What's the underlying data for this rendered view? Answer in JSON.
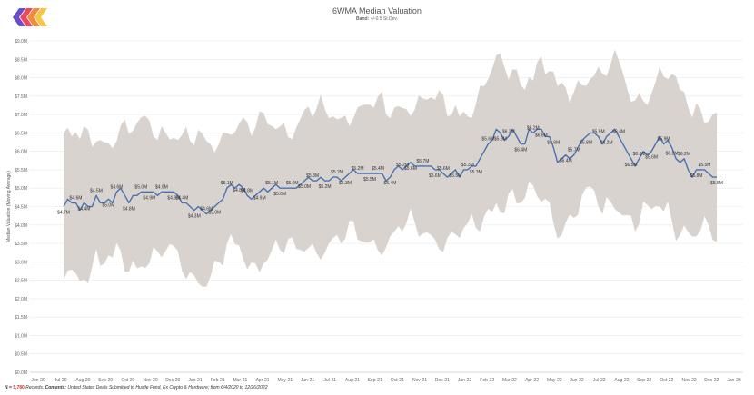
{
  "title": "6WMA Median Valuation",
  "subtitle": {
    "label": "Band:",
    "value": "+/-0.5 St.Dev."
  },
  "logo": {
    "name": "hustle-fund-logo",
    "colors": [
      "#6a4ec9",
      "#e94a5f",
      "#f08a3c",
      "#f7c548"
    ]
  },
  "footer": {
    "n_prefix": "N =",
    "n_value": "5,780",
    "records": "Records.",
    "contents_label": "Contents:",
    "contents_text": "United States Deals Submitted to Hustle Fund, Ex Crypto & Hardware; from 6/4/2020 to 12/26/2022"
  },
  "chart_data": {
    "type": "line",
    "title": "6WMA Median Valuation",
    "ylabel": "Median Valuation (Moving Average)",
    "ylim": [
      0,
      9
    ],
    "y_ticks": [
      "$0.0M",
      "$0.5M",
      "$1.0M",
      "$1.5M",
      "$2.0M",
      "$2.5M",
      "$3.0M",
      "$3.5M",
      "$4.0M",
      "$4.5M",
      "$5.0M",
      "$5.5M",
      "$6.0M",
      "$6.5M",
      "$7.0M",
      "$7.5M",
      "$8.0M",
      "$8.5M",
      "$9.0M"
    ],
    "x_ticks": [
      "Jun-20",
      "Jul-20",
      "Aug-20",
      "Sep-20",
      "Oct-20",
      "Nov-20",
      "Dec-20",
      "Jan-21",
      "Feb-21",
      "Mar-21",
      "Apr-21",
      "May-21",
      "Jun-21",
      "Jul-21",
      "Aug-21",
      "Sep-21",
      "Oct-21",
      "Nov-21",
      "Dec-21",
      "Jan-22",
      "Feb-22",
      "Mar-22",
      "Apr-22",
      "May-22",
      "Jun-22",
      "Jul-22",
      "Aug-22",
      "Sep-22",
      "Oct-22",
      "Nov-22",
      "Dec-22",
      "Jan-23"
    ],
    "line_color": "#4a72b0",
    "band_color": "#d9d3d0",
    "series": [
      {
        "values": [
          4.5,
          4.7,
          4.6,
          4.6,
          4.4,
          4.6,
          4.5,
          4.5,
          4.8,
          4.6,
          4.6,
          4.7,
          4.6,
          4.9,
          5.0,
          4.8,
          4.6,
          4.8,
          4.8,
          4.9,
          4.9,
          4.9,
          4.9,
          4.8,
          4.9,
          4.9,
          4.9,
          4.9,
          4.8,
          4.6,
          4.6,
          4.5,
          4.4,
          4.5,
          4.4,
          4.3,
          4.4,
          4.5,
          4.6,
          4.7,
          5.0,
          5.1,
          5.0,
          5.1,
          5.0,
          4.8,
          4.7,
          4.8,
          4.9,
          5.0,
          4.9,
          5.0,
          5.1,
          5.0,
          5.0,
          5.0,
          5.0,
          5.0,
          5.1,
          5.2,
          5.3,
          5.2,
          5.2,
          5.3,
          5.2,
          5.2,
          5.3,
          5.3,
          5.2,
          5.3,
          5.4,
          5.5,
          5.4,
          5.4,
          5.4,
          5.4,
          5.4,
          5.4,
          5.4,
          5.2,
          5.3,
          5.5,
          5.6,
          5.5,
          5.6,
          5.7,
          5.6,
          5.6,
          5.6,
          5.6,
          5.6,
          5.5,
          5.5,
          5.4,
          5.3,
          5.4,
          5.5,
          5.3,
          5.5,
          5.5,
          5.6,
          5.6,
          5.8,
          6.0,
          6.2,
          6.3,
          6.6,
          6.5,
          6.3,
          6.4,
          6.6,
          6.4,
          6.2,
          6.2,
          6.6,
          6.5,
          6.6,
          6.6,
          6.4,
          6.4,
          6.1,
          5.7,
          5.8,
          5.9,
          5.8,
          5.9,
          6.1,
          6.3,
          6.4,
          6.5,
          6.5,
          6.4,
          6.2,
          6.4,
          6.5,
          6.6,
          6.4,
          6.2,
          6.0,
          5.8,
          5.6,
          5.8,
          6.0,
          5.9,
          6.0,
          6.2,
          6.4,
          6.2,
          6.3,
          6.1,
          5.8,
          5.7,
          5.8,
          5.5,
          5.3,
          5.5,
          5.5,
          5.5,
          5.4,
          5.3,
          5.3
        ]
      }
    ],
    "data_labels": [
      "$4.7M",
      "$4.6M",
      "$4.4M",
      "$4.5M",
      "$5.0M",
      "$4.6M",
      "$4.8M",
      "$5.0M",
      "$4.9M",
      "$4.9M",
      "$4.6M",
      "$4.4M",
      "$4.3M",
      "$4.6M",
      "$5.0M",
      "$5.1M",
      "$4.8M",
      "$4.8M",
      "$4.9M",
      "$5.1M",
      "$5.0M",
      "$5.0M",
      "$5.0M",
      "$5.3M",
      "$5.2M",
      "$5.2M",
      "$5.3M",
      "$5.2M",
      "$5.5M",
      "$5.4M",
      "$5.4M",
      "$5.2M",
      "$5.6M",
      "$5.7M",
      "$5.6M",
      "$5.6M",
      "$5.5M",
      "$5.3M",
      "$5.3M",
      "$5.6M",
      "$5.8M",
      "$6.3M",
      "$6.4M",
      "$6.2M",
      "$6.6M",
      "$6.6M",
      "$6.4M",
      "$5.7M",
      "$5.8M",
      "$5.9M",
      "$6.2M",
      "$6.4M",
      "$6.5M",
      "$6.0M",
      "$5.6M",
      "$5.9M",
      "$6.2M",
      "$6.2M",
      "$5.8M",
      "$5.5M",
      "$5.5M"
    ]
  }
}
